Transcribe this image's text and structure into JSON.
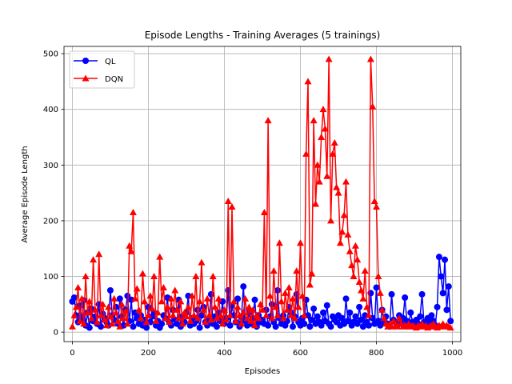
{
  "chart_data": {
    "type": "line",
    "title": "Episode Lengths - Training Averages (5 trainings)",
    "xlabel": "Episodes",
    "ylabel": "Average Episode Length",
    "xlim": [
      -22,
      1022
    ],
    "ylim": [
      -17,
      513
    ],
    "xticks": [
      0,
      200,
      400,
      600,
      800,
      1000
    ],
    "yticks": [
      0,
      100,
      200,
      300,
      400,
      500
    ],
    "grid": true,
    "legend_position": "top-left",
    "series": [
      {
        "name": "QL",
        "color": "#0000ff",
        "marker": "circle",
        "x": [
          0,
          5,
          10,
          15,
          20,
          25,
          30,
          35,
          40,
          45,
          50,
          55,
          60,
          65,
          70,
          75,
          80,
          85,
          90,
          95,
          100,
          105,
          110,
          115,
          120,
          125,
          130,
          135,
          140,
          145,
          150,
          155,
          160,
          165,
          170,
          175,
          180,
          185,
          190,
          195,
          200,
          205,
          210,
          215,
          220,
          225,
          230,
          235,
          240,
          245,
          250,
          255,
          260,
          265,
          270,
          275,
          280,
          285,
          290,
          295,
          300,
          305,
          310,
          315,
          320,
          325,
          330,
          335,
          340,
          345,
          350,
          355,
          360,
          365,
          370,
          375,
          380,
          385,
          390,
          395,
          400,
          405,
          410,
          415,
          420,
          425,
          430,
          435,
          440,
          445,
          450,
          455,
          460,
          465,
          470,
          475,
          480,
          485,
          490,
          495,
          500,
          505,
          510,
          515,
          520,
          525,
          530,
          535,
          540,
          545,
          550,
          555,
          560,
          565,
          570,
          575,
          580,
          585,
          590,
          595,
          600,
          605,
          610,
          615,
          620,
          625,
          630,
          635,
          640,
          645,
          650,
          655,
          660,
          665,
          670,
          675,
          680,
          685,
          690,
          695,
          700,
          705,
          710,
          715,
          720,
          725,
          730,
          735,
          740,
          745,
          750,
          755,
          760,
          765,
          770,
          775,
          780,
          785,
          790,
          795,
          800,
          805,
          810,
          815,
          820,
          825,
          830,
          835,
          840,
          845,
          850,
          855,
          860,
          865,
          870,
          875,
          880,
          885,
          890,
          895,
          900,
          905,
          910,
          915,
          920,
          925,
          930,
          935,
          940,
          945,
          950,
          955,
          960,
          965,
          970,
          975,
          980,
          985,
          990,
          995
        ],
        "y": [
          55,
          62,
          30,
          18,
          48,
          22,
          57,
          12,
          35,
          8,
          42,
          20,
          28,
          15,
          50,
          10,
          33,
          25,
          18,
          12,
          75,
          30,
          22,
          45,
          15,
          60,
          28,
          12,
          40,
          65,
          20,
          58,
          10,
          35,
          25,
          15,
          30,
          12,
          22,
          8,
          45,
          18,
          28,
          35,
          12,
          20,
          8,
          15,
          30,
          25,
          62,
          18,
          12,
          40,
          22,
          15,
          58,
          10,
          28,
          18,
          35,
          65,
          12,
          25,
          15,
          20,
          40,
          8,
          30,
          45,
          18,
          12,
          22,
          68,
          15,
          28,
          10,
          35,
          20,
          55,
          15,
          25,
          75,
          12,
          48,
          30,
          18,
          60,
          10,
          28,
          82,
          20,
          12,
          35,
          15,
          25,
          58,
          10,
          30,
          18,
          22,
          15,
          40,
          12,
          28,
          50,
          18,
          10,
          75,
          25,
          15,
          30,
          12,
          20,
          45,
          35,
          10,
          28,
          68,
          18,
          12,
          25,
          15,
          58,
          30,
          10,
          22,
          42,
          15,
          28,
          18,
          12,
          35,
          20,
          48,
          15,
          10,
          28,
          22,
          18,
          30,
          12,
          25,
          15,
          60,
          20,
          35,
          12,
          18,
          28,
          15,
          45,
          22,
          10,
          30,
          18,
          12,
          70,
          25,
          15,
          80,
          20,
          12,
          40,
          18,
          28,
          15,
          10,
          68,
          22,
          18,
          12,
          30,
          15,
          25,
          62,
          20,
          12,
          35,
          18,
          10,
          22,
          15,
          28,
          68,
          18,
          12,
          25,
          15,
          30,
          20,
          12,
          45,
          135,
          100,
          70,
          130,
          40,
          82,
          20
        ]
      },
      {
        "name": "DQN",
        "color": "#ff0000",
        "marker": "triangle-up",
        "x": [
          0,
          5,
          10,
          15,
          20,
          25,
          30,
          35,
          40,
          45,
          50,
          55,
          60,
          65,
          70,
          75,
          80,
          85,
          90,
          95,
          100,
          105,
          110,
          115,
          120,
          125,
          130,
          135,
          140,
          145,
          150,
          155,
          160,
          165,
          170,
          175,
          180,
          185,
          190,
          195,
          200,
          205,
          210,
          215,
          220,
          225,
          230,
          235,
          240,
          245,
          250,
          255,
          260,
          265,
          270,
          275,
          280,
          285,
          290,
          295,
          300,
          305,
          310,
          315,
          320,
          325,
          330,
          335,
          340,
          345,
          350,
          355,
          360,
          365,
          370,
          375,
          380,
          385,
          390,
          395,
          400,
          405,
          410,
          415,
          420,
          425,
          430,
          435,
          440,
          445,
          450,
          455,
          460,
          465,
          470,
          475,
          480,
          485,
          490,
          495,
          500,
          505,
          510,
          515,
          520,
          525,
          530,
          535,
          540,
          545,
          550,
          555,
          560,
          565,
          570,
          575,
          580,
          585,
          590,
          595,
          600,
          605,
          610,
          615,
          620,
          625,
          630,
          635,
          640,
          645,
          650,
          655,
          660,
          665,
          670,
          675,
          680,
          685,
          690,
          695,
          700,
          705,
          710,
          715,
          720,
          725,
          730,
          735,
          740,
          745,
          750,
          755,
          760,
          765,
          770,
          775,
          780,
          785,
          790,
          795,
          800,
          805,
          810,
          815,
          820,
          825,
          830,
          835,
          840,
          845,
          850,
          855,
          860,
          865,
          870,
          875,
          880,
          885,
          890,
          895,
          900,
          905,
          910,
          915,
          920,
          925,
          930,
          935,
          940,
          945,
          950,
          955,
          960,
          965,
          970,
          975,
          980,
          985,
          990,
          995
        ],
        "y": [
          10,
          30,
          45,
          80,
          20,
          60,
          15,
          100,
          35,
          55,
          25,
          130,
          40,
          18,
          140,
          30,
          50,
          22,
          12,
          45,
          28,
          15,
          60,
          35,
          20,
          10,
          50,
          25,
          38,
          15,
          155,
          145,
          215,
          60,
          78,
          40,
          25,
          105,
          55,
          18,
          30,
          65,
          42,
          100,
          20,
          35,
          135,
          55,
          80,
          25,
          45,
          18,
          60,
          30,
          75,
          40,
          25,
          55,
          15,
          35,
          28,
          45,
          20,
          65,
          30,
          100,
          25,
          55,
          125,
          40,
          18,
          60,
          30,
          22,
          100,
          45,
          25,
          60,
          30,
          15,
          40,
          22,
          235,
          30,
          225,
          55,
          20,
          45,
          30,
          15,
          35,
          60,
          25,
          45,
          20,
          40,
          12,
          30,
          25,
          50,
          40,
          215,
          30,
          380,
          65,
          25,
          110,
          45,
          30,
          160,
          55,
          25,
          70,
          40,
          80,
          30,
          60,
          25,
          110,
          45,
          160,
          65,
          30,
          320,
          450,
          85,
          105,
          380,
          230,
          300,
          270,
          350,
          400,
          365,
          280,
          490,
          200,
          320,
          340,
          260,
          250,
          160,
          180,
          210,
          270,
          175,
          145,
          120,
          100,
          155,
          130,
          90,
          75,
          60,
          110,
          45,
          30,
          490,
          405,
          235,
          225,
          100,
          70,
          40,
          25,
          15,
          10,
          15,
          10,
          20,
          12,
          10,
          25,
          15,
          10,
          12,
          10,
          15,
          10,
          12,
          10,
          8,
          12,
          10,
          15,
          10,
          12,
          8,
          10,
          12,
          15,
          10,
          8,
          12,
          10,
          15,
          10,
          12,
          10,
          8
        ]
      }
    ]
  }
}
